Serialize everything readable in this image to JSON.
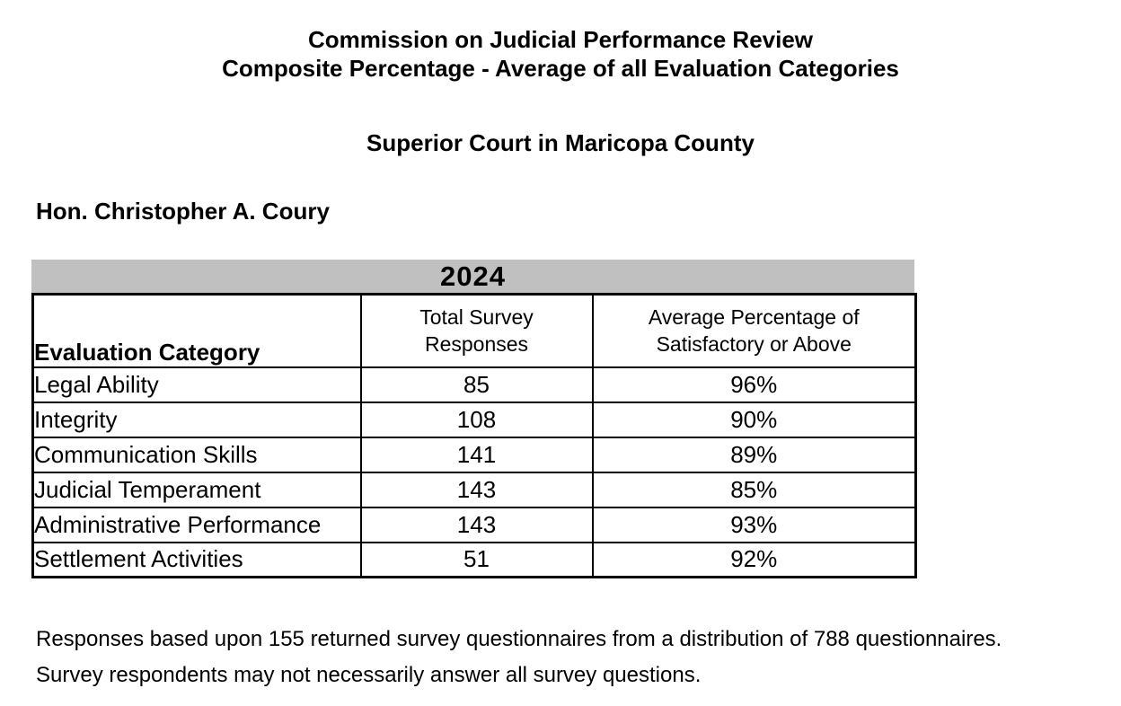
{
  "header": {
    "title_line1": "Commission on Judicial Performance Review",
    "title_line2": "Composite Percentage - Average of all Evaluation Categories",
    "court": "Superior Court in Maricopa County",
    "judge": "Hon. Christopher A. Coury"
  },
  "table": {
    "year_banner": "2024",
    "banner_bg_color": "#c0c0c0",
    "header": {
      "category": "Evaluation Category",
      "responses_line1": "Total Survey",
      "responses_line2": "Responses",
      "percentage_line1": "Average Percentage of",
      "percentage_line2": "Satisfactory or Above"
    },
    "rows": [
      {
        "category": "Legal Ability",
        "responses": "85",
        "percentage": "96%"
      },
      {
        "category": "Integrity",
        "responses": "108",
        "percentage": "90%"
      },
      {
        "category": "Communication Skills",
        "responses": "141",
        "percentage": "89%"
      },
      {
        "category": "Judicial Temperament",
        "responses": "143",
        "percentage": "85%"
      },
      {
        "category": "Administrative Performance",
        "responses": "143",
        "percentage": "93%"
      },
      {
        "category": "Settlement Activities",
        "responses": "51",
        "percentage": "92%"
      }
    ]
  },
  "footer": {
    "line1": "Responses based upon 155 returned survey questionnaires from a distribution of 788 questionnaires.",
    "line2": "Survey respondents may not necessarily answer all survey questions."
  }
}
